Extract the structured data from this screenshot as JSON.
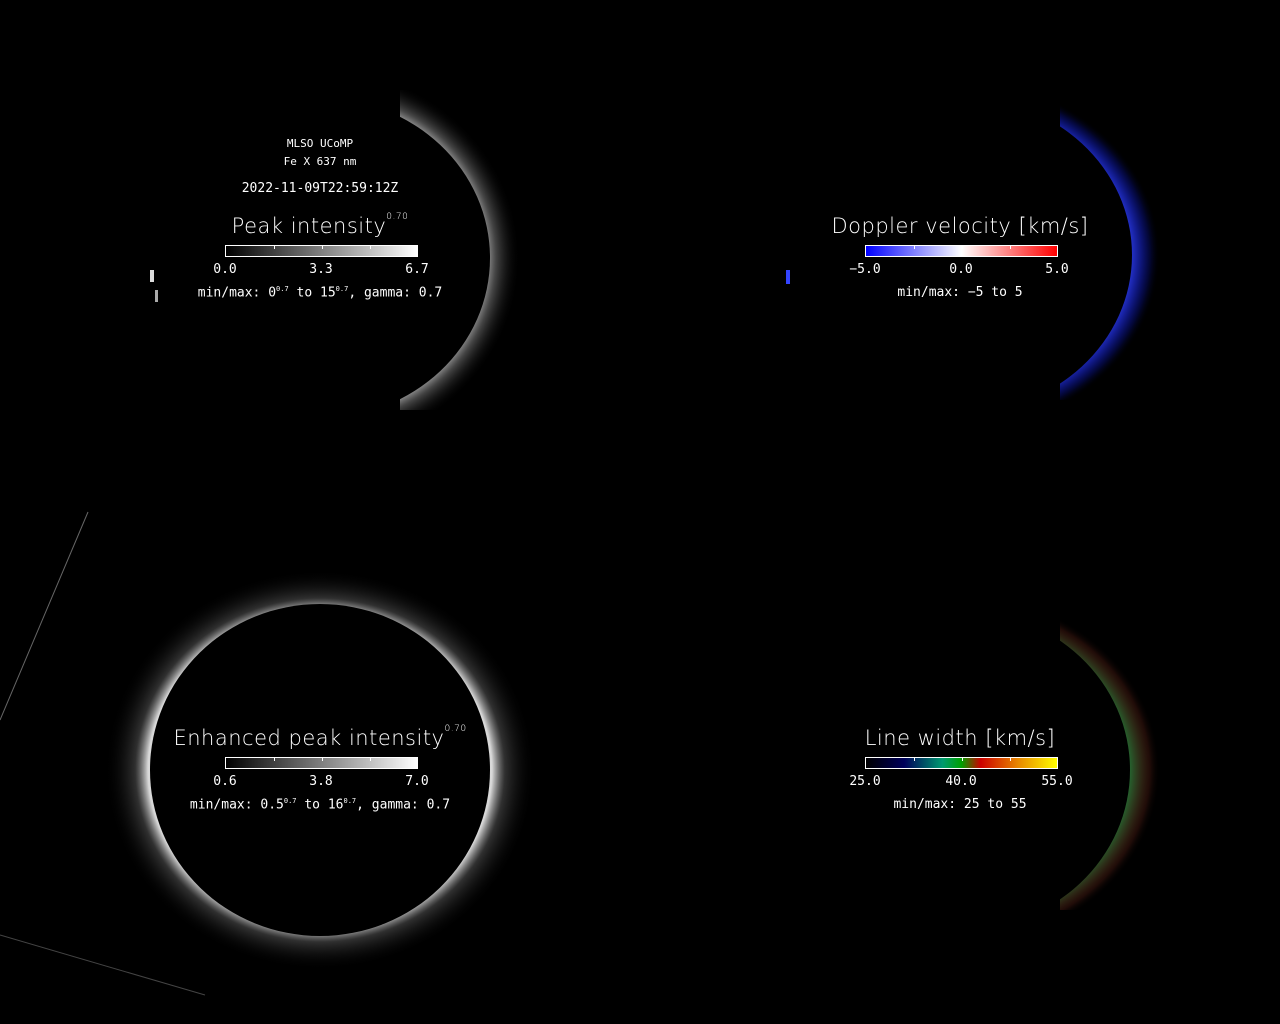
{
  "header": {
    "observatory": "MLSO UCoMP",
    "line": "Fe X 637 nm",
    "datetime": "2022-11-09T22:59:12Z"
  },
  "panels": [
    {
      "title": "Peak intensity",
      "exponent": "0.70",
      "colorbar": {
        "colormap": "grayscale",
        "colors": [
          "#000000",
          "#ffffff"
        ],
        "labels": [
          "0.0",
          "3.3",
          "6.7"
        ]
      },
      "minmax": {
        "prefix": "min/max: ",
        "min": "0",
        "min_exp": "0.7",
        "to": " to ",
        "max": "15",
        "max_exp": "0.7",
        "suffix": ", gamma: 0.7"
      }
    },
    {
      "title": "Doppler velocity [km/s]",
      "colorbar": {
        "colormap": "blue-white-red",
        "colors": [
          "#0000ff",
          "#ffffff",
          "#ff0000"
        ],
        "labels": [
          "−5.0",
          "0.0",
          "5.0"
        ]
      },
      "minmax": {
        "text": "min/max: −5 to 5"
      }
    },
    {
      "title": "Enhanced peak intensity",
      "exponent": "0.70",
      "colorbar": {
        "colormap": "grayscale",
        "colors": [
          "#000000",
          "#ffffff"
        ],
        "labels": [
          "0.6",
          "3.8",
          "7.0"
        ]
      },
      "minmax": {
        "prefix": "min/max: ",
        "min": "0.5",
        "min_exp": "0.7",
        "to": " to ",
        "max": "16",
        "max_exp": "0.7",
        "suffix": ", gamma: 0.7"
      }
    },
    {
      "title": "Line width [km/s]",
      "colorbar": {
        "colormap": "line-width",
        "colors": [
          "#000000",
          "#00005a",
          "#009a70",
          "#00a000",
          "#cc0000",
          "#e88a00",
          "#ffff00"
        ],
        "labels": [
          "25.0",
          "40.0",
          "55.0"
        ]
      },
      "minmax": {
        "text": "min/max: 25 to 55"
      }
    }
  ]
}
